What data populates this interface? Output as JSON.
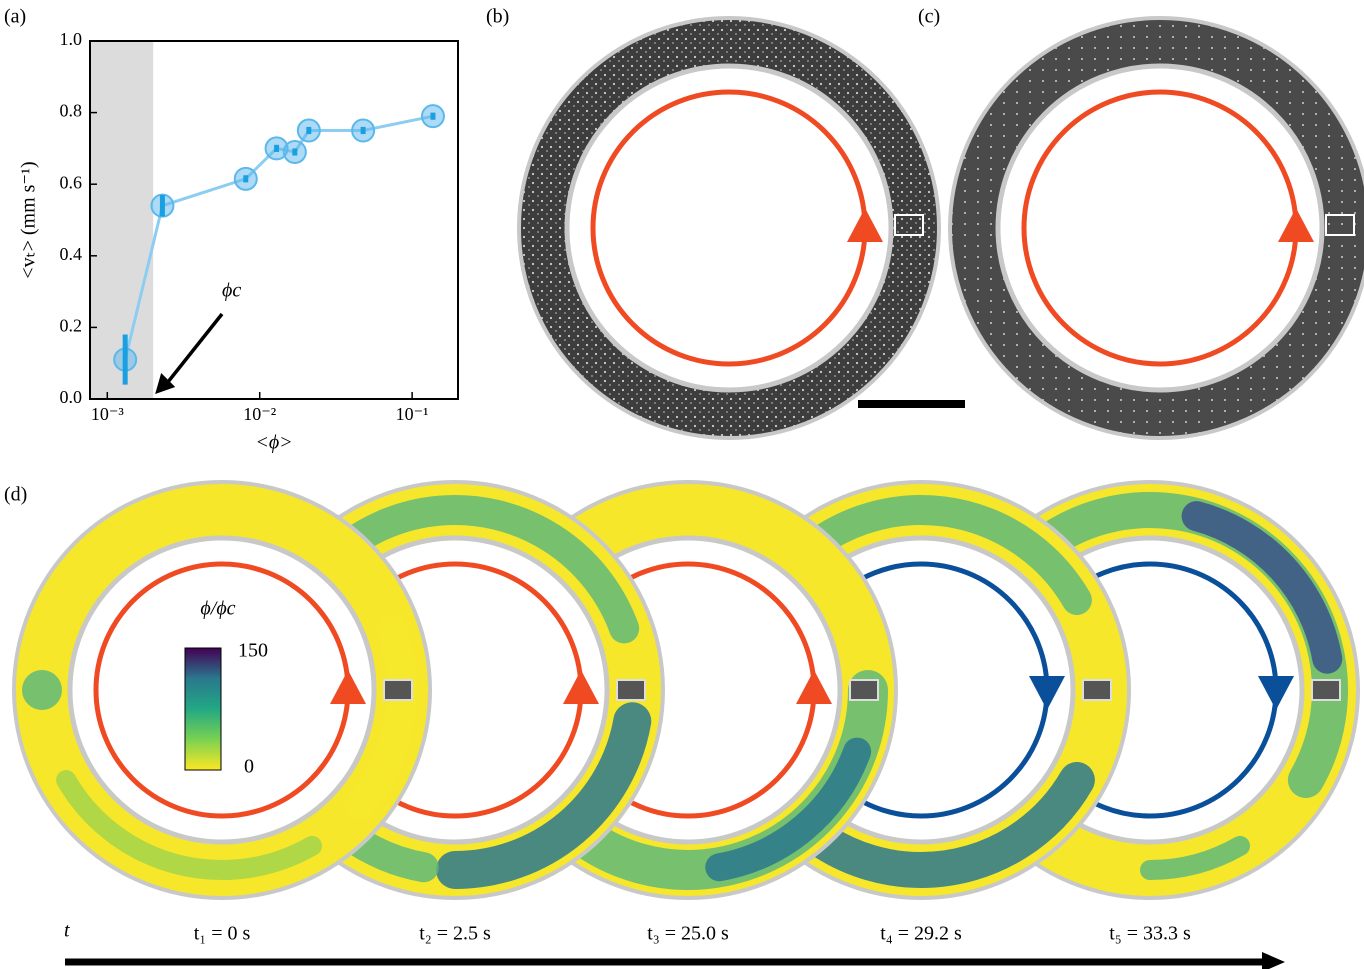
{
  "chart_data": {
    "type": "line",
    "xlabel": "<ϕ>",
    "ylabel": "<vₜ> (mm s⁻¹)",
    "x": [
      0.00131,
      0.0023,
      0.0081,
      0.0129,
      0.017,
      0.021,
      0.0477,
      0.137
    ],
    "values": [
      0.11,
      0.54,
      0.615,
      0.7,
      0.69,
      0.75,
      0.75,
      0.79
    ],
    "errors": [
      0.07,
      0.03,
      0.01,
      0.01,
      0.01,
      0.01,
      0.01,
      0.01
    ],
    "color": "#5bb8ec",
    "log_x": true,
    "xlim": [
      0.00077,
      0.2
    ],
    "ylim": [
      0,
      1
    ],
    "xticks": [
      {
        "value": 0.001,
        "label": "10⁻³"
      },
      {
        "value": 0.01,
        "label": "10⁻²"
      },
      {
        "value": 0.1,
        "label": "10⁻¹"
      }
    ],
    "yticks": [
      {
        "value": 0,
        "label": "0.0"
      },
      0.2,
      0.4,
      0.6,
      0.8,
      {
        "value": 1,
        "label": "1.0"
      }
    ],
    "shade_xmax": 0.002,
    "annotation": "ϕc"
  },
  "panels": [
    "(a)",
    "(b)",
    "(c)",
    "(d)"
  ],
  "colorbar": {
    "label": "ϕ/ϕc",
    "max": 150,
    "min": 0
  },
  "time_axis_label": "t",
  "time_labels": [
    "t₁ = 0 s",
    "t₂ = 2.5 s",
    "t₃ = 25.0 s",
    "t₄ = 29.2 s",
    "t₅ = 33.3 s"
  ]
}
